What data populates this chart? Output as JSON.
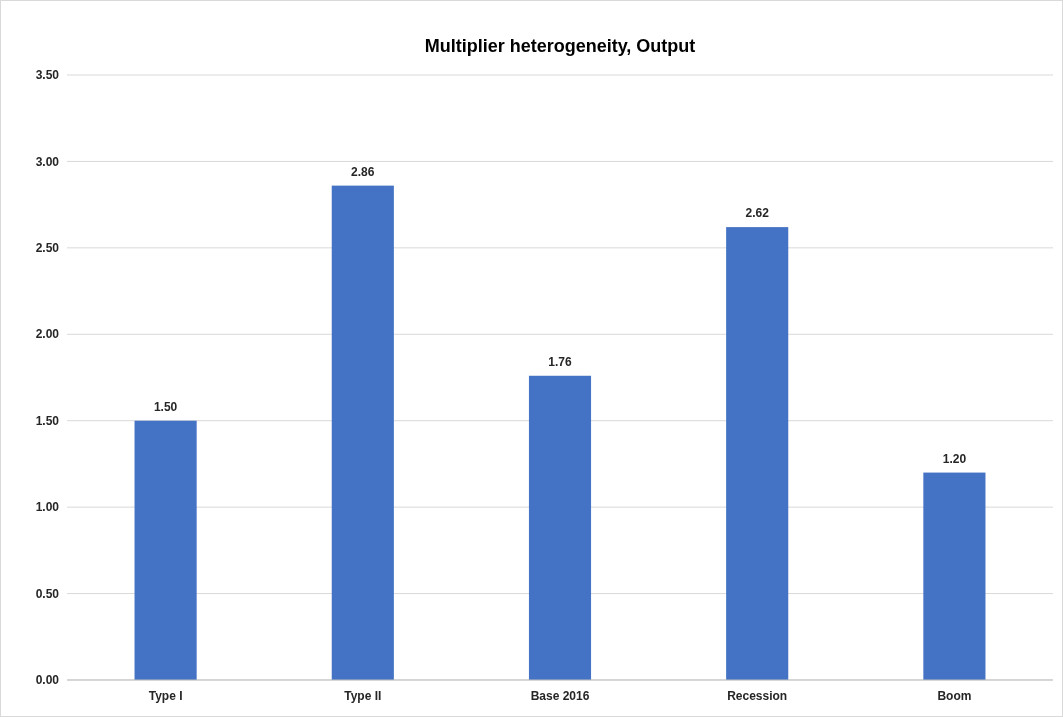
{
  "chart_data": {
    "type": "bar",
    "title": "Multiplier heterogeneity, Output",
    "categories": [
      "Type I",
      "Type II",
      "Base 2016",
      "Recession",
      "Boom"
    ],
    "values": [
      1.5,
      2.86,
      1.76,
      2.62,
      1.2
    ],
    "color": "#4472c4",
    "ylim": [
      0,
      3.5
    ],
    "yticks": [
      {
        "value": 0,
        "label": "0.00"
      },
      {
        "value": 0.5,
        "label": "0.50"
      },
      {
        "value": 1,
        "label": "1.00"
      },
      {
        "value": 1.5,
        "label": "1.50"
      },
      {
        "value": 2,
        "label": "2.00"
      },
      {
        "value": 2.5,
        "label": "2.50"
      },
      {
        "value": 3,
        "label": "3.00"
      },
      {
        "value": 3.5,
        "label": "3.50"
      }
    ],
    "value_labels": [
      "1.50",
      "2.86",
      "1.76",
      "2.62",
      "1.20"
    ],
    "grid": true
  }
}
